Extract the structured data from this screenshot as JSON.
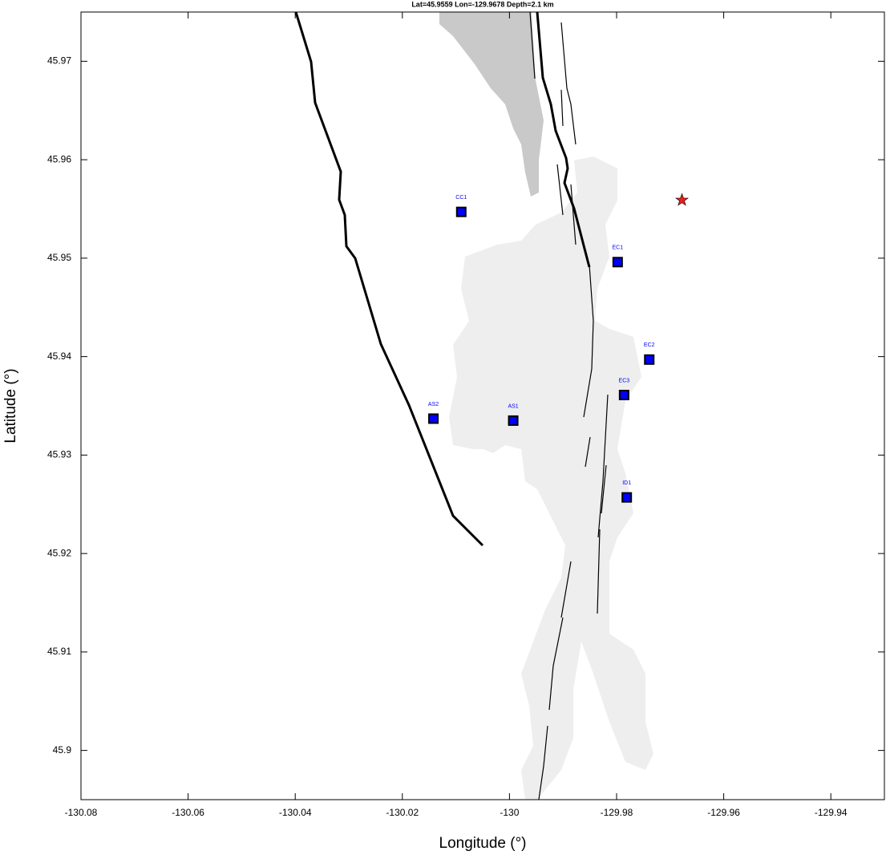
{
  "chart_data": {
    "type": "map",
    "title": "Lat=45.9559  Lon=-129.9678  Depth=2.1 km",
    "x_label": "Longitude (°)",
    "y_label": "Latitude (°)",
    "xlim": [
      -130.08,
      -129.93
    ],
    "ylim": [
      45.895,
      45.975
    ],
    "xticks": [
      -130.08,
      -130.06,
      -130.04,
      -130.02,
      -130,
      -129.98,
      -129.96,
      -129.94
    ],
    "yticks": [
      45.9,
      45.91,
      45.92,
      45.93,
      45.94,
      45.95,
      45.96,
      45.97
    ],
    "station_color": "#0000ff",
    "stations": [
      {
        "label": "CC1",
        "x": -130.009,
        "y": 45.9547
      },
      {
        "label": "EC1",
        "x": -129.9798,
        "y": 45.9496
      },
      {
        "label": "EC2",
        "x": -129.9739,
        "y": 45.9397
      },
      {
        "label": "EC3",
        "x": -129.9786,
        "y": 45.9361
      },
      {
        "label": "AS2",
        "x": -130.0142,
        "y": 45.9337
      },
      {
        "label": "AS1",
        "x": -129.9993,
        "y": 45.9335
      },
      {
        "label": "ID1",
        "x": -129.9781,
        "y": 45.9257
      }
    ],
    "event": {
      "x": -129.9678,
      "y": 45.9559,
      "color": "#e8211f"
    }
  }
}
